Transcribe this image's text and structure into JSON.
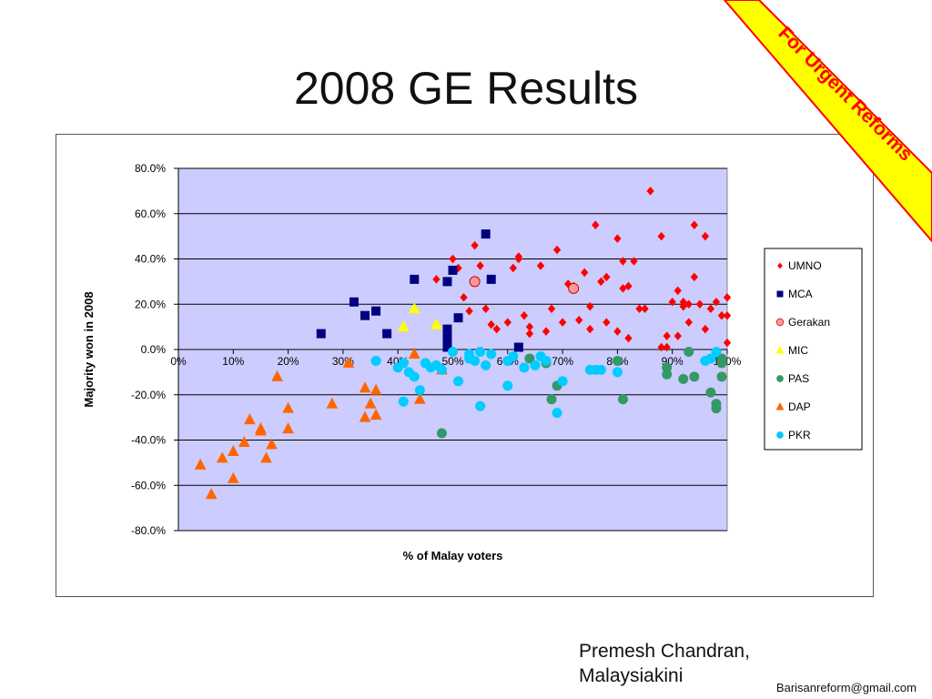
{
  "slide": {
    "title": "2008 GE Results",
    "banner": "For Urgent Reforms",
    "credit_line1": "Premesh Chandran,",
    "credit_line2": "Malaysiakini",
    "email": "Barisanreform@gmail.com"
  },
  "colors": {
    "plot_bg": "#ccccff",
    "banner_fill": "#ffff00",
    "banner_stroke": "#ff0000",
    "banner_text": "#ff0000"
  },
  "chart_data": {
    "type": "scatter",
    "xlabel": "% of Malay voters",
    "ylabel": "Majority won in 2008",
    "xlim": [
      0,
      100
    ],
    "ylim": [
      -80,
      80
    ],
    "x_ticks": [
      "0%",
      "10%",
      "20%",
      "30%",
      "40%",
      "50%",
      "60%",
      "70%",
      "80%",
      "90%",
      "100%"
    ],
    "y_ticks": [
      "80.0%",
      "60.0%",
      "40.0%",
      "20.0%",
      "0.0%",
      "-20.0%",
      "-40.0%",
      "-60.0%",
      "-80.0%"
    ],
    "grid": "horizontal",
    "legend": "right",
    "series": [
      {
        "name": "UMNO",
        "marker": "diamond",
        "color": "#ff0000",
        "points": [
          [
            47,
            31
          ],
          [
            50,
            40
          ],
          [
            51,
            36
          ],
          [
            52,
            23
          ],
          [
            53,
            17
          ],
          [
            54,
            46
          ],
          [
            55,
            37
          ],
          [
            56,
            18
          ],
          [
            57,
            11
          ],
          [
            58,
            9
          ],
          [
            60,
            12
          ],
          [
            61,
            36
          ],
          [
            62,
            40
          ],
          [
            62,
            41
          ],
          [
            63,
            15
          ],
          [
            64,
            7
          ],
          [
            64,
            10
          ],
          [
            66,
            37
          ],
          [
            67,
            8
          ],
          [
            68,
            18
          ],
          [
            69,
            44
          ],
          [
            70,
            12
          ],
          [
            71,
            29
          ],
          [
            72,
            28
          ],
          [
            73,
            13
          ],
          [
            74,
            34
          ],
          [
            75,
            9
          ],
          [
            75,
            19
          ],
          [
            76,
            55
          ],
          [
            77,
            30
          ],
          [
            78,
            32
          ],
          [
            78,
            12
          ],
          [
            80,
            49
          ],
          [
            80,
            8
          ],
          [
            81,
            39
          ],
          [
            81,
            27
          ],
          [
            82,
            5
          ],
          [
            82,
            28
          ],
          [
            83,
            39
          ],
          [
            84,
            18
          ],
          [
            85,
            18
          ],
          [
            86,
            70
          ],
          [
            88,
            50
          ],
          [
            88,
            1
          ],
          [
            89,
            6
          ],
          [
            89,
            1
          ],
          [
            90,
            21
          ],
          [
            91,
            26
          ],
          [
            91,
            6
          ],
          [
            92,
            19
          ],
          [
            92,
            21
          ],
          [
            93,
            20
          ],
          [
            93,
            12
          ],
          [
            94,
            55
          ],
          [
            94,
            32
          ],
          [
            95,
            20
          ],
          [
            96,
            50
          ],
          [
            96,
            9
          ],
          [
            97,
            18
          ],
          [
            98,
            21
          ],
          [
            99,
            15
          ],
          [
            100,
            23
          ],
          [
            100,
            3
          ],
          [
            100,
            15
          ]
        ]
      },
      {
        "name": "MCA",
        "marker": "square",
        "color": "#000080",
        "points": [
          [
            26,
            7
          ],
          [
            32,
            21
          ],
          [
            34,
            15
          ],
          [
            36,
            17
          ],
          [
            38,
            7
          ],
          [
            43,
            31
          ],
          [
            49,
            30
          ],
          [
            49,
            5
          ],
          [
            49,
            9
          ],
          [
            49,
            1
          ],
          [
            50,
            35
          ],
          [
            51,
            14
          ],
          [
            56,
            51
          ],
          [
            57,
            31
          ],
          [
            62,
            1
          ]
        ]
      },
      {
        "name": "Gerakan",
        "marker": "circle",
        "color": "#ff9999",
        "stroke": "#cc0000",
        "points": [
          [
            54,
            30
          ],
          [
            72,
            27
          ]
        ]
      },
      {
        "name": "MIC",
        "marker": "triangle",
        "color": "#ffff00",
        "points": [
          [
            41,
            10
          ],
          [
            43,
            18
          ],
          [
            47,
            11
          ]
        ]
      },
      {
        "name": "PAS",
        "marker": "circle",
        "color": "#339966",
        "points": [
          [
            48,
            -37
          ],
          [
            64,
            -4
          ],
          [
            67,
            -6
          ],
          [
            68,
            -22
          ],
          [
            69,
            -16
          ],
          [
            80,
            -5
          ],
          [
            81,
            -22
          ],
          [
            89,
            -8
          ],
          [
            89,
            -11
          ],
          [
            92,
            -13
          ],
          [
            93,
            -1
          ],
          [
            94,
            -12
          ],
          [
            97,
            -19
          ],
          [
            98,
            -26
          ],
          [
            98,
            -24
          ],
          [
            99,
            -4
          ],
          [
            99,
            -12
          ],
          [
            99,
            -6
          ]
        ]
      },
      {
        "name": "DAP",
        "marker": "triangle",
        "color": "#ff6600",
        "points": [
          [
            4,
            -51
          ],
          [
            6,
            -64
          ],
          [
            8,
            -48
          ],
          [
            10,
            -45
          ],
          [
            10,
            -57
          ],
          [
            12,
            -41
          ],
          [
            13,
            -31
          ],
          [
            15,
            -36
          ],
          [
            15,
            -35
          ],
          [
            16,
            -48
          ],
          [
            17,
            -42
          ],
          [
            18,
            -12
          ],
          [
            20,
            -26
          ],
          [
            20,
            -35
          ],
          [
            28,
            -24
          ],
          [
            31,
            -6
          ],
          [
            34,
            -17
          ],
          [
            34,
            -30
          ],
          [
            35,
            -24
          ],
          [
            36,
            -29
          ],
          [
            36,
            -18
          ],
          [
            43,
            -2
          ],
          [
            44,
            -22
          ],
          [
            48,
            -9
          ]
        ]
      },
      {
        "name": "PKR",
        "marker": "circle",
        "color": "#00ccff",
        "points": [
          [
            36,
            -5
          ],
          [
            40,
            -8
          ],
          [
            41,
            -6
          ],
          [
            41,
            -23
          ],
          [
            42,
            -10
          ],
          [
            43,
            -12
          ],
          [
            44,
            -18
          ],
          [
            45,
            -6
          ],
          [
            46,
            -8
          ],
          [
            47,
            -7
          ],
          [
            48,
            -9
          ],
          [
            50,
            -1
          ],
          [
            51,
            -14
          ],
          [
            53,
            -4
          ],
          [
            53,
            -2
          ],
          [
            54,
            -5
          ],
          [
            55,
            -1
          ],
          [
            55,
            -25
          ],
          [
            56,
            -7
          ],
          [
            57,
            -2
          ],
          [
            60,
            -16
          ],
          [
            60,
            -5
          ],
          [
            61,
            -3
          ],
          [
            63,
            -8
          ],
          [
            65,
            -7
          ],
          [
            66,
            -3
          ],
          [
            67,
            -5
          ],
          [
            69,
            -28
          ],
          [
            70,
            -14
          ],
          [
            75,
            -9
          ],
          [
            76,
            -9
          ],
          [
            77,
            -9
          ],
          [
            80,
            -10
          ],
          [
            96,
            -5
          ],
          [
            97,
            -4
          ],
          [
            98,
            -1
          ]
        ]
      }
    ]
  }
}
